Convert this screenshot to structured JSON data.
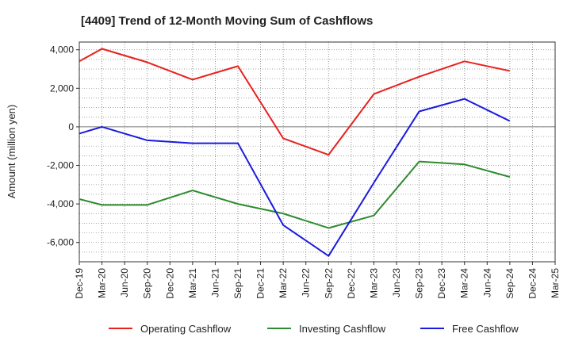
{
  "chart_data": {
    "type": "line",
    "title": "[4409]  Trend of 12-Month Moving Sum of Cashflows",
    "xlabel": "",
    "ylabel": "Amount (million yen)",
    "ylim": [
      -7000,
      4400
    ],
    "yticks": [
      4000,
      2000,
      0,
      -2000,
      -4000,
      -6000
    ],
    "ytick_labels": [
      "4,000",
      "2,000",
      "0",
      "-2,000",
      "-4,000",
      "-6,000"
    ],
    "categories": [
      "Dec-19",
      "Mar-20",
      "Jun-20",
      "Sep-20",
      "Dec-20",
      "Mar-21",
      "Jun-21",
      "Sep-21",
      "Dec-21",
      "Mar-22",
      "Jun-22",
      "Sep-22",
      "Dec-22",
      "Mar-23",
      "Jun-23",
      "Sep-23",
      "Dec-23",
      "Mar-24",
      "Jun-24",
      "Sep-24",
      "Dec-24",
      "Mar-25"
    ],
    "grid": true,
    "legend_position": "bottom",
    "series": [
      {
        "name": "Operating Cashflow",
        "color": "#e8211d",
        "points": [
          [
            "Dec-19",
            3400
          ],
          [
            "Mar-20",
            4050
          ],
          [
            "Sep-20",
            3350
          ],
          [
            "Mar-21",
            2450
          ],
          [
            "Sep-21",
            3150
          ],
          [
            "Mar-22",
            -600
          ],
          [
            "Sep-22",
            -1450
          ],
          [
            "Mar-23",
            1700
          ],
          [
            "Sep-23",
            2600
          ],
          [
            "Mar-24",
            3400
          ],
          [
            "Sep-24",
            2900
          ]
        ]
      },
      {
        "name": "Investing Cashflow",
        "color": "#2e8b2e",
        "points": [
          [
            "Dec-19",
            -3750
          ],
          [
            "Mar-20",
            -4050
          ],
          [
            "Sep-20",
            -4050
          ],
          [
            "Mar-21",
            -3300
          ],
          [
            "Sep-21",
            -4000
          ],
          [
            "Mar-22",
            -4500
          ],
          [
            "Sep-22",
            -5250
          ],
          [
            "Mar-23",
            -4600
          ],
          [
            "Sep-23",
            -1800
          ],
          [
            "Mar-24",
            -1950
          ],
          [
            "Sep-24",
            -2600
          ]
        ]
      },
      {
        "name": "Free Cashflow",
        "color": "#1a1ae0",
        "points": [
          [
            "Dec-19",
            -350
          ],
          [
            "Mar-20",
            0
          ],
          [
            "Sep-20",
            -700
          ],
          [
            "Mar-21",
            -850
          ],
          [
            "Sep-21",
            -850
          ],
          [
            "Mar-22",
            -5100
          ],
          [
            "Sep-22",
            -6700
          ],
          [
            "Mar-23",
            -2900
          ],
          [
            "Sep-23",
            800
          ],
          [
            "Mar-24",
            1450
          ],
          [
            "Sep-24",
            300
          ]
        ]
      }
    ]
  }
}
